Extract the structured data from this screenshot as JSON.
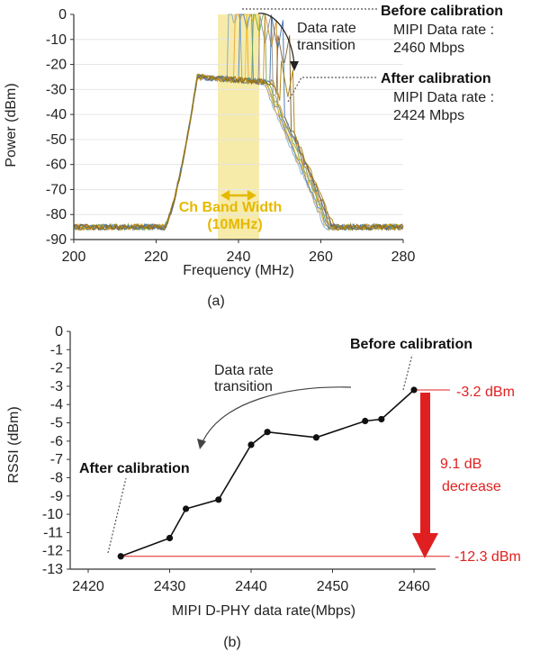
{
  "chart_data": [
    {
      "type": "line",
      "panel_label": "(a)",
      "xlabel": "Frequency (MHz)",
      "ylabel": "Power (dBm)",
      "xlim": [
        200,
        280
      ],
      "ylim": [
        -90,
        0
      ],
      "xticks": [
        "200",
        "220",
        "240",
        "260",
        "280"
      ],
      "yticks": [
        "0",
        "-10",
        "-20",
        "-30",
        "-40",
        "-50",
        "-60",
        "-70",
        "-80",
        "-90"
      ],
      "band": {
        "from": 235,
        "to": 245,
        "label_line1": "Ch Band Width",
        "label_line2": "(10MHz)",
        "color": "#f5e79a"
      },
      "noise_floor": -85,
      "plateau_level": -25,
      "spur_peaks": [
        {
          "freq": 239,
          "power": -5,
          "color": "#7fa8c9"
        },
        {
          "freq": 240.5,
          "power": -3,
          "color": "#e8a33d"
        },
        {
          "freq": 242,
          "power": -6,
          "color": "#4a7fc1"
        },
        {
          "freq": 243.5,
          "power": -4,
          "color": "#f0c419"
        },
        {
          "freq": 245,
          "power": -8,
          "color": "#6aa84f"
        },
        {
          "freq": 246.5,
          "power": -12,
          "color": "#8e8e8e"
        },
        {
          "freq": 248,
          "power": -13,
          "color": "#d08a1e"
        },
        {
          "freq": 249.5,
          "power": -14,
          "color": "#3d6ea8"
        },
        {
          "freq": 251,
          "power": -21,
          "color": "#7b5b2c"
        },
        {
          "freq": 252,
          "power": -33,
          "color": "#a67c00"
        }
      ],
      "annotations": {
        "before_title": "Before calibration",
        "before_line1": "MIPI Data rate :",
        "before_line2": "2460 Mbps",
        "after_title": "After calibration",
        "after_line1": "MIPI Data rate :",
        "after_line2": "2424 Mbps",
        "transition_line1": "Data rate",
        "transition_line2": "transition"
      }
    },
    {
      "type": "line",
      "panel_label": "(b)",
      "xlabel": "MIPI D-PHY data rate(Mbps)",
      "ylabel": "RSSI (dBm)",
      "xlim": [
        2420,
        2465
      ],
      "ylim": [
        -13,
        0
      ],
      "xticks": [
        "2420",
        "2430",
        "2440",
        "2450",
        "2460"
      ],
      "yticks": [
        "0",
        "-1",
        "-2",
        "-3",
        "-4",
        "-5",
        "-6",
        "-7",
        "-8",
        "-9",
        "-10",
        "-11",
        "-12",
        "-13"
      ],
      "series": [
        {
          "x": [
            2424,
            2430,
            2432,
            2436,
            2440,
            2442,
            2448,
            2454,
            2456,
            2460
          ],
          "y": [
            -12.3,
            -11.3,
            -9.7,
            -9.2,
            -6.2,
            -5.5,
            -5.8,
            -4.9,
            -4.8,
            -3.2
          ]
        }
      ],
      "annotations": {
        "before_title": "Before calibration",
        "after_title": "After calibration",
        "transition_line1": "Data rate",
        "transition_line2": "transition",
        "top_value": "-3.2 dBm",
        "bottom_value": "-12.3 dBm",
        "delta_line1": "9.1 dB",
        "delta_line2": "decrease",
        "accent_color": "#e02020"
      }
    }
  ]
}
